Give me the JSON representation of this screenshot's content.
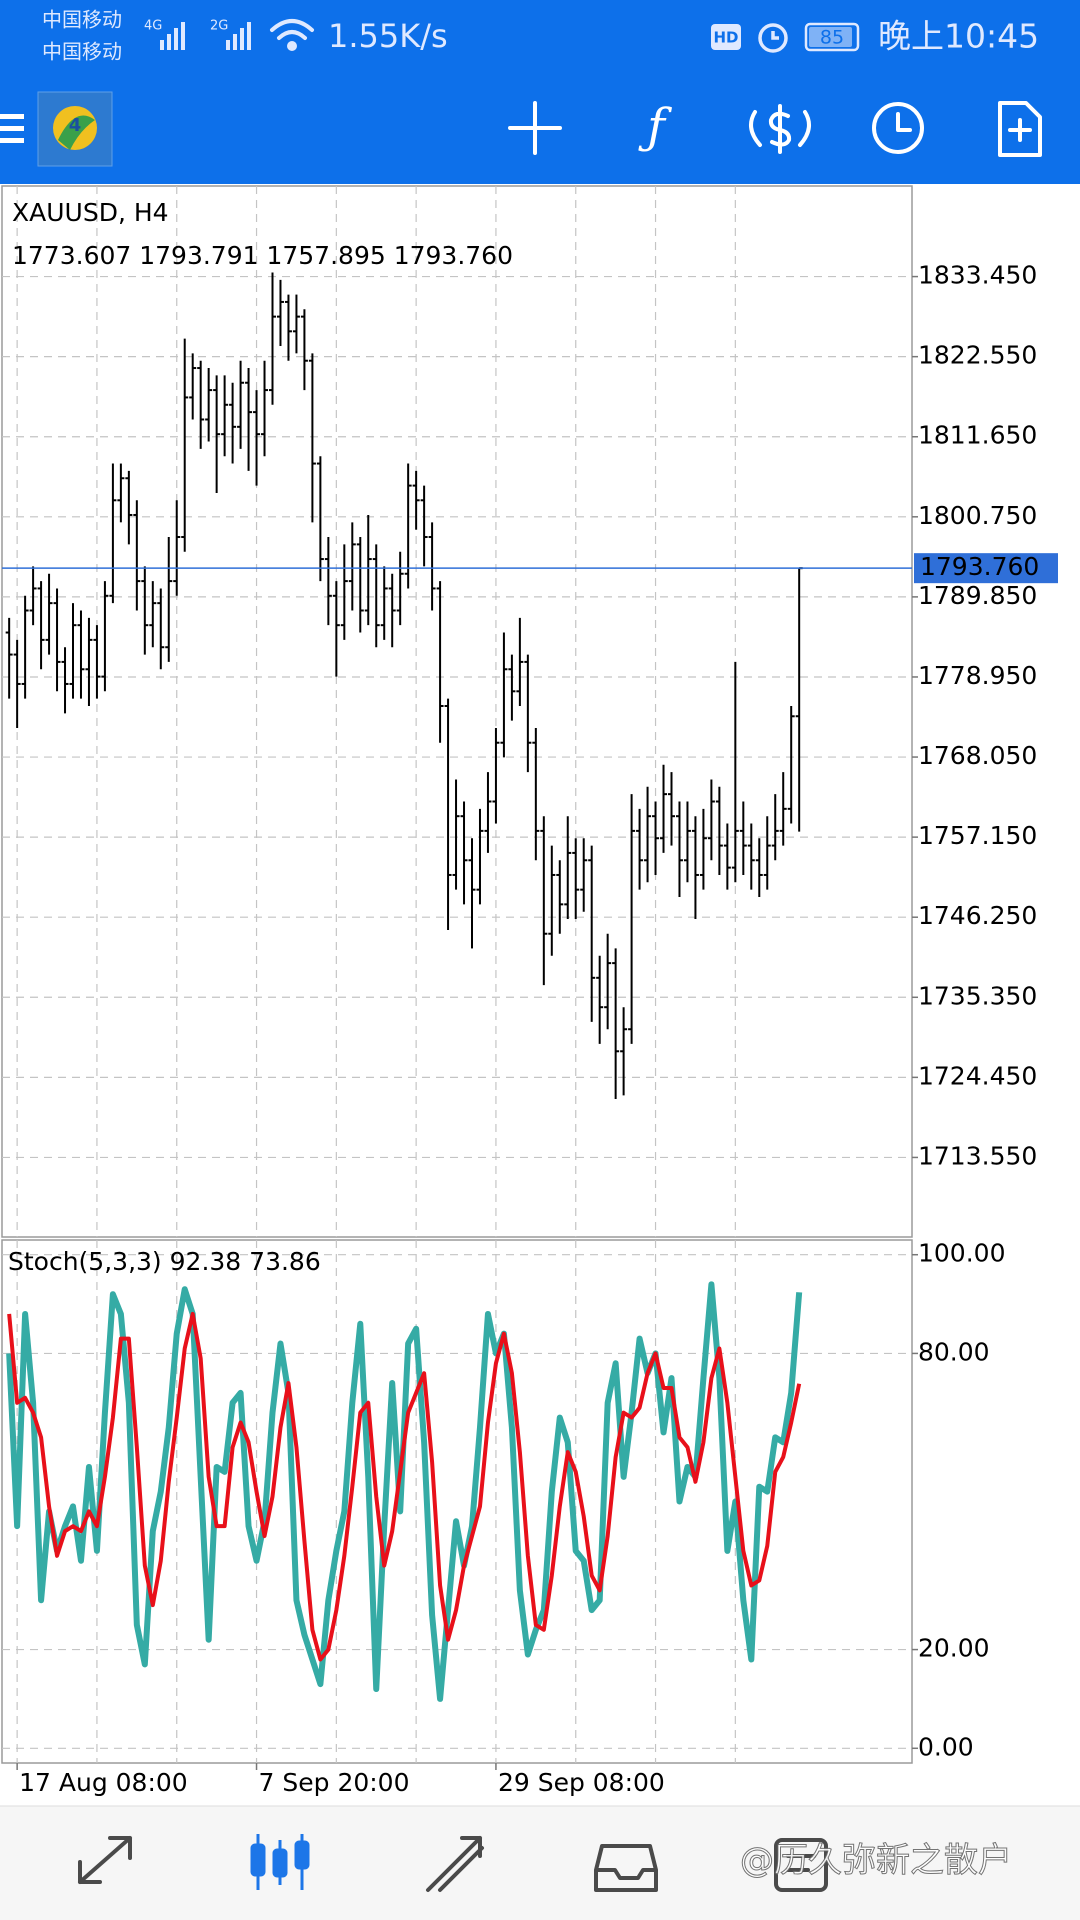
{
  "status_bar": {
    "carrier_1": "中国移动",
    "carrier_2": "中国移动",
    "network_1": "4G",
    "network_2": "2G",
    "speed": "1.55K/s",
    "hd": "HD",
    "battery": "85",
    "time": "晚上10:45"
  },
  "watermark": "@历久弥新之散户",
  "chart_data": [
    {
      "type": "ohlc",
      "title": "XAUUSD, H4",
      "last_bar_text": "1773.607 1793.791 1757.895 1793.760",
      "color": "#000000",
      "grid": true,
      "current_price": {
        "value": 1793.76,
        "label": "1793.760",
        "color": "#2f6fd8"
      },
      "ylim": [
        1702.72,
        1845.78
      ],
      "yticks": [
        {
          "value": 1833.45,
          "label": "1833.450"
        },
        {
          "value": 1822.55,
          "label": "1822.550"
        },
        {
          "value": 1811.65,
          "label": "1811.650"
        },
        {
          "value": 1800.75,
          "label": "1800.750"
        },
        {
          "value": 1789.85,
          "label": "1789.850"
        },
        {
          "value": 1778.95,
          "label": "1778.950"
        },
        {
          "value": 1768.05,
          "label": "1768.050"
        },
        {
          "value": 1757.15,
          "label": "1757.150"
        },
        {
          "value": 1746.25,
          "label": "1746.250"
        },
        {
          "value": 1735.35,
          "label": "1735.350"
        },
        {
          "value": 1724.45,
          "label": "1724.450"
        },
        {
          "value": 1713.55,
          "label": "1713.550"
        }
      ],
      "categories": [
        null,
        "17 Aug 08:00",
        null,
        null,
        null,
        null,
        null,
        null,
        null,
        null,
        null,
        null,
        null,
        null,
        null,
        null,
        null,
        null,
        null,
        null,
        null,
        null,
        null,
        null,
        null,
        null,
        null,
        null,
        null,
        null,
        null,
        "7 Sep 20:00",
        null,
        null,
        null,
        null,
        null,
        null,
        null,
        null,
        null,
        null,
        null,
        null,
        null,
        null,
        null,
        null,
        null,
        null,
        null,
        null,
        null,
        null,
        null,
        null,
        null,
        null,
        null,
        null,
        null,
        "29 Sep 08:00",
        null,
        null,
        null,
        null,
        null,
        null,
        null,
        null,
        null,
        null,
        null,
        null,
        null,
        null,
        null,
        null,
        null,
        null,
        null,
        null,
        null,
        null,
        null,
        null,
        null,
        null,
        null,
        null,
        null,
        null,
        null,
        null,
        null,
        null,
        null,
        null,
        null,
        null
      ],
      "open": [
        1785,
        1782,
        1778,
        1788,
        1791,
        1784,
        1789,
        1781,
        1778,
        1786,
        1780,
        1784,
        1779,
        1790,
        1803,
        1806,
        1801,
        1792,
        1786,
        1789,
        1783,
        1792,
        1798,
        1817,
        1821,
        1814,
        1818,
        1812,
        1816,
        1813,
        1819,
        1815,
        1812,
        1818,
        1828,
        1830,
        1826,
        1828,
        1822,
        1808,
        1795,
        1790,
        1786,
        1792,
        1797,
        1788,
        1795,
        1786,
        1791,
        1788,
        1793,
        1805,
        1803,
        1798,
        1791,
        1775,
        1752,
        1760,
        1754,
        1750,
        1758,
        1762,
        1770,
        1780,
        1777,
        1781,
        1770,
        1758,
        1744,
        1752,
        1748,
        1755,
        1750,
        1754,
        1738,
        1734,
        1740,
        1728,
        1731,
        1758,
        1754,
        1760,
        1757,
        1763,
        1760,
        1754,
        1758,
        1752,
        1757,
        1762,
        1756,
        1753,
        1758,
        1756,
        1754,
        1752,
        1756,
        1758,
        1761,
        1773.607
      ],
      "high": [
        1787,
        1784,
        1790,
        1794,
        1792,
        1793,
        1791,
        1783,
        1789,
        1788,
        1787,
        1786,
        1792,
        1808,
        1808,
        1807,
        1803,
        1794,
        1792,
        1791,
        1798,
        1803,
        1825,
        1823,
        1822,
        1821,
        1820,
        1820,
        1819,
        1822,
        1821,
        1818,
        1822,
        1834,
        1833,
        1831,
        1831,
        1829,
        1823,
        1809,
        1798,
        1792,
        1797,
        1800,
        1798,
        1801,
        1797,
        1794,
        1793,
        1796,
        1808,
        1807,
        1805,
        1800,
        1792,
        1776,
        1765,
        1762,
        1757,
        1761,
        1766,
        1772,
        1785,
        1782,
        1787,
        1782,
        1772,
        1760,
        1756,
        1754,
        1760,
        1757,
        1757,
        1756,
        1741,
        1744,
        1742,
        1734,
        1763,
        1761,
        1764,
        1762,
        1767,
        1766,
        1762,
        1762,
        1760,
        1761,
        1765,
        1764,
        1759,
        1781,
        1762,
        1759,
        1757,
        1760,
        1763,
        1766,
        1775,
        1793.791
      ],
      "low": [
        1776,
        1772,
        1776,
        1786,
        1780,
        1782,
        1777,
        1774,
        1776,
        1776,
        1775,
        1776,
        1777,
        1789,
        1800,
        1797,
        1788,
        1782,
        1783,
        1780,
        1781,
        1790,
        1796,
        1814,
        1810,
        1811,
        1804,
        1809,
        1808,
        1810,
        1807,
        1805,
        1809,
        1816,
        1824,
        1822,
        1823,
        1818,
        1800,
        1792,
        1786,
        1779,
        1784,
        1788,
        1785,
        1786,
        1783,
        1784,
        1783,
        1786,
        1791,
        1799,
        1794,
        1788,
        1770,
        1744.5,
        1750,
        1748,
        1742,
        1748,
        1755,
        1759,
        1768,
        1773,
        1775,
        1766,
        1754,
        1737,
        1741,
        1744,
        1746,
        1746,
        1747,
        1732,
        1729,
        1731,
        1721.5,
        1722,
        1729,
        1750,
        1751,
        1752,
        1755,
        1756,
        1749,
        1751,
        1746,
        1750,
        1754,
        1752,
        1750,
        1751,
        1752,
        1750,
        1749,
        1750,
        1754,
        1756,
        1759,
        1757.895
      ],
      "close": [
        1782,
        1778,
        1788,
        1791,
        1784,
        1789,
        1781,
        1778,
        1786,
        1780,
        1784,
        1779,
        1790,
        1803,
        1806,
        1801,
        1792,
        1786,
        1789,
        1783,
        1792,
        1798,
        1817,
        1821,
        1814,
        1818,
        1812,
        1816,
        1813,
        1819,
        1815,
        1812,
        1818,
        1828,
        1830,
        1826,
        1828,
        1822,
        1808,
        1795,
        1790,
        1786,
        1792,
        1797,
        1788,
        1795,
        1786,
        1791,
        1788,
        1793,
        1805,
        1803,
        1798,
        1791,
        1775,
        1752,
        1760,
        1754,
        1750,
        1758,
        1762,
        1770,
        1780,
        1777,
        1781,
        1770,
        1758,
        1744,
        1752,
        1748,
        1755,
        1750,
        1754,
        1738,
        1734,
        1740,
        1728,
        1731,
        1758,
        1754,
        1760,
        1757,
        1763,
        1760,
        1754,
        1758,
        1752,
        1757,
        1762,
        1756,
        1753,
        1758,
        1756,
        1754,
        1752,
        1756,
        1758,
        1761,
        1773.6,
        1793.76
      ]
    },
    {
      "type": "line",
      "title": "Stoch(5,3,3)",
      "grid": true,
      "ylim": [
        -2.98,
        102.98
      ],
      "yticks": [
        {
          "value": 100,
          "label": "100.00"
        },
        {
          "value": 80,
          "label": "80.00"
        },
        {
          "value": 20,
          "label": "20.00"
        },
        {
          "value": 0,
          "label": "0.00"
        }
      ],
      "series": [
        {
          "name": "Main",
          "color": "#35aba5",
          "width": 6,
          "values": [
            80,
            45,
            88,
            70,
            30,
            48,
            40,
            45,
            49,
            38,
            57,
            40,
            68,
            92,
            88,
            70,
            25,
            17,
            44,
            52,
            65,
            84,
            93,
            88,
            55,
            22,
            57,
            56,
            70,
            72,
            45,
            38,
            46,
            68,
            82,
            72,
            30,
            23,
            18,
            13,
            30,
            40,
            48,
            70,
            86,
            55,
            12,
            45,
            74,
            48,
            82,
            85,
            62,
            27,
            10,
            28,
            46,
            37,
            45,
            65,
            88,
            80,
            84,
            65,
            32,
            19,
            24,
            28,
            52,
            67,
            62,
            40,
            38,
            28,
            30,
            70,
            78,
            55,
            68,
            83,
            76,
            80,
            64,
            75,
            50,
            57,
            55,
            75,
            94,
            75,
            40,
            50,
            30,
            18,
            53,
            52,
            63,
            62,
            72,
            92.38
          ]
        },
        {
          "name": "Signal",
          "color": "#e8101a",
          "width": 4,
          "values": [
            88,
            70,
            71,
            68,
            63,
            49,
            39,
            44,
            45,
            44,
            48,
            45,
            55,
            67,
            83,
            83,
            61,
            37,
            29,
            38,
            54,
            67,
            81,
            88,
            79,
            55,
            45,
            45,
            61,
            66,
            62,
            52,
            43,
            51,
            65,
            74,
            61,
            42,
            24,
            18,
            20,
            28,
            39,
            53,
            68,
            70,
            51,
            37,
            44,
            56,
            68,
            72,
            76,
            58,
            33,
            22,
            28,
            37,
            43,
            49,
            66,
            78,
            84,
            76,
            60,
            39,
            25,
            24,
            35,
            49,
            60,
            56,
            47,
            35,
            32,
            43,
            59,
            68,
            67,
            69,
            76,
            80,
            73,
            73,
            63,
            61,
            54,
            62,
            75,
            81,
            70,
            55,
            40,
            33,
            34,
            41,
            56,
            59,
            66,
            73.86
          ]
        }
      ]
    }
  ]
}
